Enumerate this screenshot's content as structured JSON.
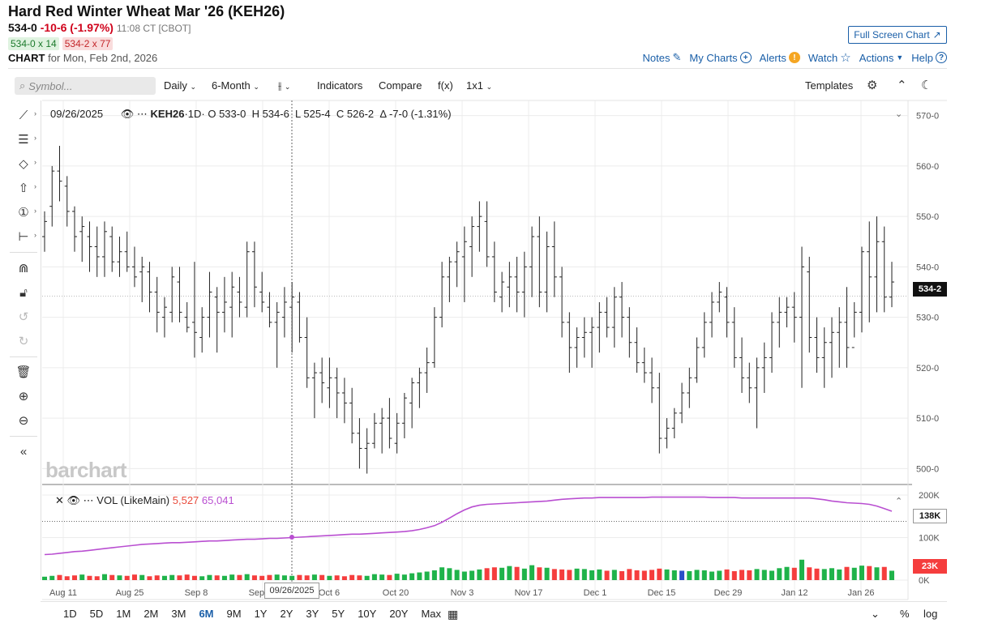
{
  "header": {
    "title": "Hard Red Winter Wheat Mar '26 (KEH26)",
    "last": "534-0",
    "change": "-10-6 (-1.97%)",
    "time": "11:08 CT [CBOT]",
    "bid": "534-0 x 14",
    "ask": "534-2 x 77",
    "chart_label": "CHART",
    "chart_for": "for Mon, Feb 2nd, 2026",
    "fullscreen_label": "Full Screen Chart"
  },
  "toplinks": {
    "notes": "Notes",
    "mycharts": "My Charts",
    "alerts": "Alerts",
    "alerts_badge": "!",
    "watch": "Watch",
    "actions": "Actions",
    "help": "Help"
  },
  "toolbar": {
    "symbol_placeholder": "Symbol...",
    "interval": "Daily",
    "period": "6-Month",
    "indicators": "Indicators",
    "compare": "Compare",
    "fx": "f(x)",
    "layout": "1x1",
    "templates": "Templates"
  },
  "legend": {
    "date": "09/26/2025",
    "symbol": "KEH26",
    "interval": "·1D·",
    "open": "O 533-0",
    "high": "H 534-6",
    "low": "L 525-4",
    "close": "C 526-2",
    "change": "Δ -7-0 (-1.31%)"
  },
  "vol_legend": {
    "name": "VOL (LikeMain)",
    "v1": "5,527",
    "v2": "65,041"
  },
  "badges": {
    "price": "534-2",
    "vol_avg": "138K",
    "vol": "23K",
    "crosshair_date": "09/26/2025"
  },
  "logo": "barchart",
  "timeframes": [
    "1D",
    "5D",
    "1M",
    "2M",
    "3M",
    "6M",
    "9M",
    "1Y",
    "2Y",
    "3Y",
    "5Y",
    "10Y",
    "20Y",
    "Max"
  ],
  "active_timeframe": "6M",
  "bottom_right": {
    "percent": "%",
    "log": "log"
  },
  "chart_data": {
    "type": "ohlc",
    "price_axis_ticks": [
      "570-0",
      "560-0",
      "550-0",
      "540-0",
      "530-0",
      "520-0",
      "510-0",
      "500-0"
    ],
    "price_axis_values": [
      570,
      560,
      550,
      540,
      530,
      520,
      510,
      500
    ],
    "volume_axis_ticks": [
      "200K",
      "100K",
      "0K"
    ],
    "x_tick_labels": [
      "Aug 11",
      "Aug 25",
      "Sep 8",
      "Sep 22",
      "Oct 6",
      "Oct 20",
      "Nov 3",
      "Nov 17",
      "Dec 1",
      "Dec 15",
      "Dec 29",
      "Jan 12",
      "Jan 26"
    ],
    "ylim": [
      497,
      573
    ],
    "bars": [
      [
        546,
        551,
        543,
        549
      ],
      [
        552,
        560,
        548,
        559
      ],
      [
        559,
        564,
        553,
        557
      ],
      [
        556,
        558,
        548,
        551
      ],
      [
        551,
        552,
        543,
        546
      ],
      [
        547,
        550,
        541,
        548
      ],
      [
        546,
        549,
        539,
        544
      ],
      [
        544,
        548,
        538,
        542
      ],
      [
        542,
        549,
        538,
        547
      ],
      [
        546,
        548,
        539,
        541
      ],
      [
        541,
        546,
        538,
        543
      ],
      [
        543,
        547,
        539,
        540
      ],
      [
        540,
        544,
        536,
        538
      ],
      [
        539,
        542,
        533,
        540
      ],
      [
        539,
        541,
        531,
        535
      ],
      [
        535,
        538,
        527,
        531
      ],
      [
        530,
        534,
        526,
        532
      ],
      [
        531,
        540,
        529,
        538
      ],
      [
        537,
        540,
        529,
        531
      ],
      [
        530,
        533,
        527,
        528
      ],
      [
        529,
        541,
        522,
        527
      ],
      [
        526,
        532,
        523,
        530
      ],
      [
        530,
        539,
        526,
        535
      ],
      [
        534,
        536,
        523,
        531
      ],
      [
        531,
        538,
        527,
        533
      ],
      [
        532,
        539,
        526,
        536
      ],
      [
        535,
        538,
        530,
        533
      ],
      [
        532,
        545,
        530,
        543
      ],
      [
        543,
        545,
        532,
        536
      ],
      [
        535,
        539,
        531,
        533
      ],
      [
        532,
        535,
        528,
        529
      ],
      [
        529,
        533,
        520,
        531
      ],
      [
        530,
        536,
        526,
        533
      ],
      [
        532,
        537,
        523,
        534
      ],
      [
        533,
        535,
        525,
        526
      ],
      [
        526,
        530,
        516,
        518
      ],
      [
        518,
        521,
        510,
        519
      ],
      [
        519,
        522,
        513,
        517
      ],
      [
        516,
        522,
        512,
        518
      ],
      [
        518,
        520,
        510,
        515
      ],
      [
        515,
        518,
        509,
        513
      ],
      [
        513,
        516,
        505,
        507
      ],
      [
        507,
        510,
        500,
        504
      ],
      [
        504,
        508,
        499,
        505
      ],
      [
        505,
        511,
        504,
        509
      ],
      [
        509,
        512,
        503,
        510
      ],
      [
        510,
        514,
        504,
        506
      ],
      [
        505,
        511,
        503,
        509
      ],
      [
        509,
        515,
        506,
        514
      ],
      [
        513,
        518,
        508,
        517
      ],
      [
        517,
        520,
        512,
        519
      ],
      [
        519,
        524,
        515,
        521
      ],
      [
        521,
        532,
        520,
        530
      ],
      [
        530,
        541,
        528,
        538
      ],
      [
        538,
        542,
        533,
        541
      ],
      [
        541,
        545,
        536,
        543
      ],
      [
        542,
        548,
        533,
        545
      ],
      [
        544,
        550,
        538,
        548
      ],
      [
        548,
        553,
        543,
        550
      ],
      [
        549,
        553,
        540,
        542
      ],
      [
        542,
        545,
        533,
        535
      ],
      [
        534,
        539,
        531,
        537
      ],
      [
        536,
        541,
        532,
        538
      ],
      [
        538,
        542,
        531,
        535
      ],
      [
        535,
        543,
        530,
        540
      ],
      [
        540,
        548,
        534,
        546
      ],
      [
        546,
        550,
        532,
        535
      ],
      [
        535,
        547,
        531,
        544
      ],
      [
        544,
        549,
        534,
        538
      ],
      [
        538,
        540,
        526,
        529
      ],
      [
        529,
        531,
        519,
        524
      ],
      [
        524,
        528,
        520,
        526
      ],
      [
        526,
        530,
        522,
        527
      ],
      [
        527,
        530,
        520,
        528
      ],
      [
        528,
        533,
        523,
        531
      ],
      [
        531,
        534,
        526,
        528
      ],
      [
        528,
        536,
        524,
        534
      ],
      [
        534,
        537,
        526,
        530
      ],
      [
        530,
        532,
        522,
        525
      ],
      [
        525,
        528,
        519,
        521
      ],
      [
        521,
        524,
        517,
        519
      ],
      [
        519,
        522,
        513,
        516
      ],
      [
        516,
        519,
        503,
        506
      ],
      [
        506,
        510,
        504,
        508
      ],
      [
        508,
        512,
        506,
        511
      ],
      [
        511,
        517,
        509,
        515
      ],
      [
        515,
        520,
        512,
        518
      ],
      [
        518,
        526,
        517,
        524
      ],
      [
        524,
        531,
        522,
        529
      ],
      [
        529,
        535,
        526,
        533
      ],
      [
        533,
        537,
        531,
        535
      ],
      [
        534,
        536,
        526,
        529
      ],
      [
        529,
        532,
        520,
        522
      ],
      [
        522,
        526,
        515,
        518
      ],
      [
        518,
        521,
        513,
        516
      ],
      [
        516,
        522,
        508,
        520
      ],
      [
        520,
        525,
        515,
        522
      ],
      [
        522,
        531,
        519,
        529
      ],
      [
        529,
        534,
        524,
        531
      ],
      [
        531,
        534,
        528,
        532
      ],
      [
        532,
        535,
        525,
        530
      ],
      [
        530,
        544,
        516,
        540
      ],
      [
        539,
        542,
        523,
        526
      ],
      [
        526,
        530,
        519,
        522
      ],
      [
        522,
        528,
        516,
        525
      ],
      [
        525,
        530,
        518,
        527
      ],
      [
        527,
        532,
        520,
        529
      ],
      [
        529,
        536,
        520,
        524
      ],
      [
        524,
        533,
        526,
        531
      ],
      [
        531,
        544,
        527,
        543
      ],
      [
        543,
        549,
        529,
        538
      ],
      [
        538,
        550,
        531,
        545
      ],
      [
        545,
        548,
        531,
        534
      ],
      [
        534,
        541,
        532,
        537
      ]
    ],
    "volume": [
      8,
      10,
      12,
      9,
      11,
      13,
      10,
      9,
      14,
      12,
      11,
      10,
      13,
      12,
      9,
      11,
      10,
      12,
      11,
      13,
      10,
      9,
      12,
      11,
      10,
      13,
      12,
      14,
      11,
      10,
      12,
      13,
      11,
      10,
      12,
      11,
      13,
      12,
      10,
      11,
      9,
      12,
      11,
      10,
      14,
      13,
      12,
      15,
      13,
      16,
      18,
      20,
      23,
      30,
      28,
      24,
      20,
      22,
      25,
      28,
      30,
      29,
      33,
      31,
      27,
      35,
      30,
      29,
      26,
      25,
      24,
      27,
      26,
      23,
      25,
      22,
      24,
      21,
      26,
      23,
      22,
      24,
      27,
      25,
      23,
      22,
      21,
      24,
      23,
      20,
      22,
      25,
      21,
      24,
      23,
      26,
      24,
      22,
      28,
      31,
      29,
      48,
      30,
      27,
      26,
      28,
      25,
      31,
      29,
      34,
      33,
      30,
      31,
      22
    ],
    "volume_colors": "green_up_red_down",
    "vol_avg": [
      60,
      61,
      63,
      65,
      67,
      68,
      70,
      72,
      74,
      76,
      78,
      80,
      82,
      84,
      85,
      86,
      87,
      88,
      88,
      89,
      90,
      91,
      92,
      92,
      93,
      94,
      95,
      96,
      96,
      97,
      98,
      98,
      99,
      100,
      101,
      102,
      103,
      104,
      105,
      106,
      107,
      108,
      108,
      109,
      110,
      111,
      112,
      113,
      114,
      116,
      119,
      123,
      128,
      136,
      146,
      156,
      165,
      172,
      176,
      178,
      179,
      180,
      181,
      182,
      183,
      184,
      185,
      186,
      188,
      190,
      191,
      192,
      193,
      193,
      194,
      194,
      194,
      194,
      194,
      194,
      194,
      195,
      195,
      195,
      195,
      195,
      195,
      195,
      195,
      194,
      194,
      194,
      194,
      193,
      193,
      193,
      193,
      193,
      193,
      193,
      193,
      193,
      193,
      191,
      189,
      186,
      184,
      182,
      181,
      180,
      178,
      174,
      168,
      162
    ]
  }
}
